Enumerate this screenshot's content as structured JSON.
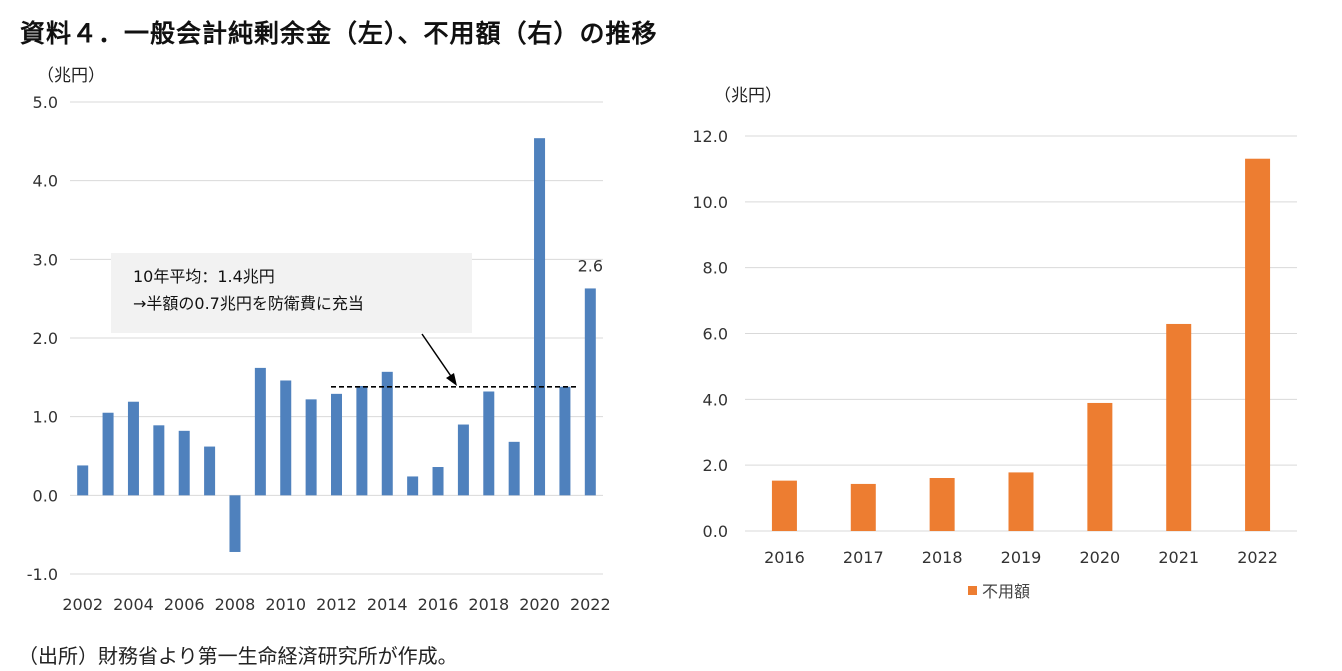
{
  "title": "資料４．一般会計純剰余金（左）、不用額（右）の推移",
  "source": "（出所）財務省より第一生命経済研究所が作成。",
  "colors": {
    "left_bar": "#4f81bd",
    "right_bar": "#ed7d31",
    "annotation_box": "#f2f2f2"
  },
  "chart_data": [
    {
      "type": "bar",
      "unit": "（兆円）",
      "categories": [
        "2002",
        "2003",
        "2004",
        "2005",
        "2006",
        "2007",
        "2008",
        "2009",
        "2010",
        "2011",
        "2012",
        "2013",
        "2014",
        "2015",
        "2016",
        "2017",
        "2018",
        "2019",
        "2020",
        "2021",
        "2022"
      ],
      "x_tick_labels": [
        "2002",
        "2004",
        "2006",
        "2008",
        "2010",
        "2012",
        "2014",
        "2016",
        "2018",
        "2020",
        "2022"
      ],
      "values": [
        0.38,
        1.05,
        1.19,
        0.89,
        0.82,
        0.62,
        -0.72,
        1.62,
        1.46,
        1.22,
        1.29,
        1.39,
        1.57,
        0.24,
        0.36,
        0.9,
        1.32,
        0.68,
        4.54,
        1.38,
        2.63
      ],
      "ylim": [
        -1.0,
        5.0
      ],
      "y_ticks": [
        -1.0,
        0.0,
        1.0,
        2.0,
        3.0,
        4.0,
        5.0
      ],
      "y_tick_labels": [
        "-1.0",
        "0.0",
        "1.0",
        "2.0",
        "3.0",
        "4.0",
        "5.0"
      ],
      "data_label": {
        "category": "2022",
        "text": "2.6"
      },
      "annotation": {
        "line1": "10年平均：1.4兆円",
        "line2": "→半額の0.7兆円を防衛費に充当"
      },
      "average_line": {
        "value": 1.38,
        "from": "2012",
        "to": "2021"
      },
      "grid": true
    },
    {
      "type": "bar",
      "unit": "（兆円）",
      "categories": [
        "2016",
        "2017",
        "2018",
        "2019",
        "2020",
        "2021",
        "2022"
      ],
      "series": [
        {
          "name": "不用額",
          "values": [
            1.53,
            1.43,
            1.61,
            1.78,
            3.89,
            6.29,
            11.31
          ]
        }
      ],
      "ylim": [
        0.0,
        12.0
      ],
      "y_ticks": [
        0.0,
        2.0,
        4.0,
        6.0,
        8.0,
        10.0,
        12.0
      ],
      "y_tick_labels": [
        "0.0",
        "2.0",
        "4.0",
        "6.0",
        "8.0",
        "10.0",
        "12.0"
      ],
      "legend": {
        "position": "bottom",
        "label": "不用額",
        "marker": "■"
      },
      "grid": true
    }
  ]
}
